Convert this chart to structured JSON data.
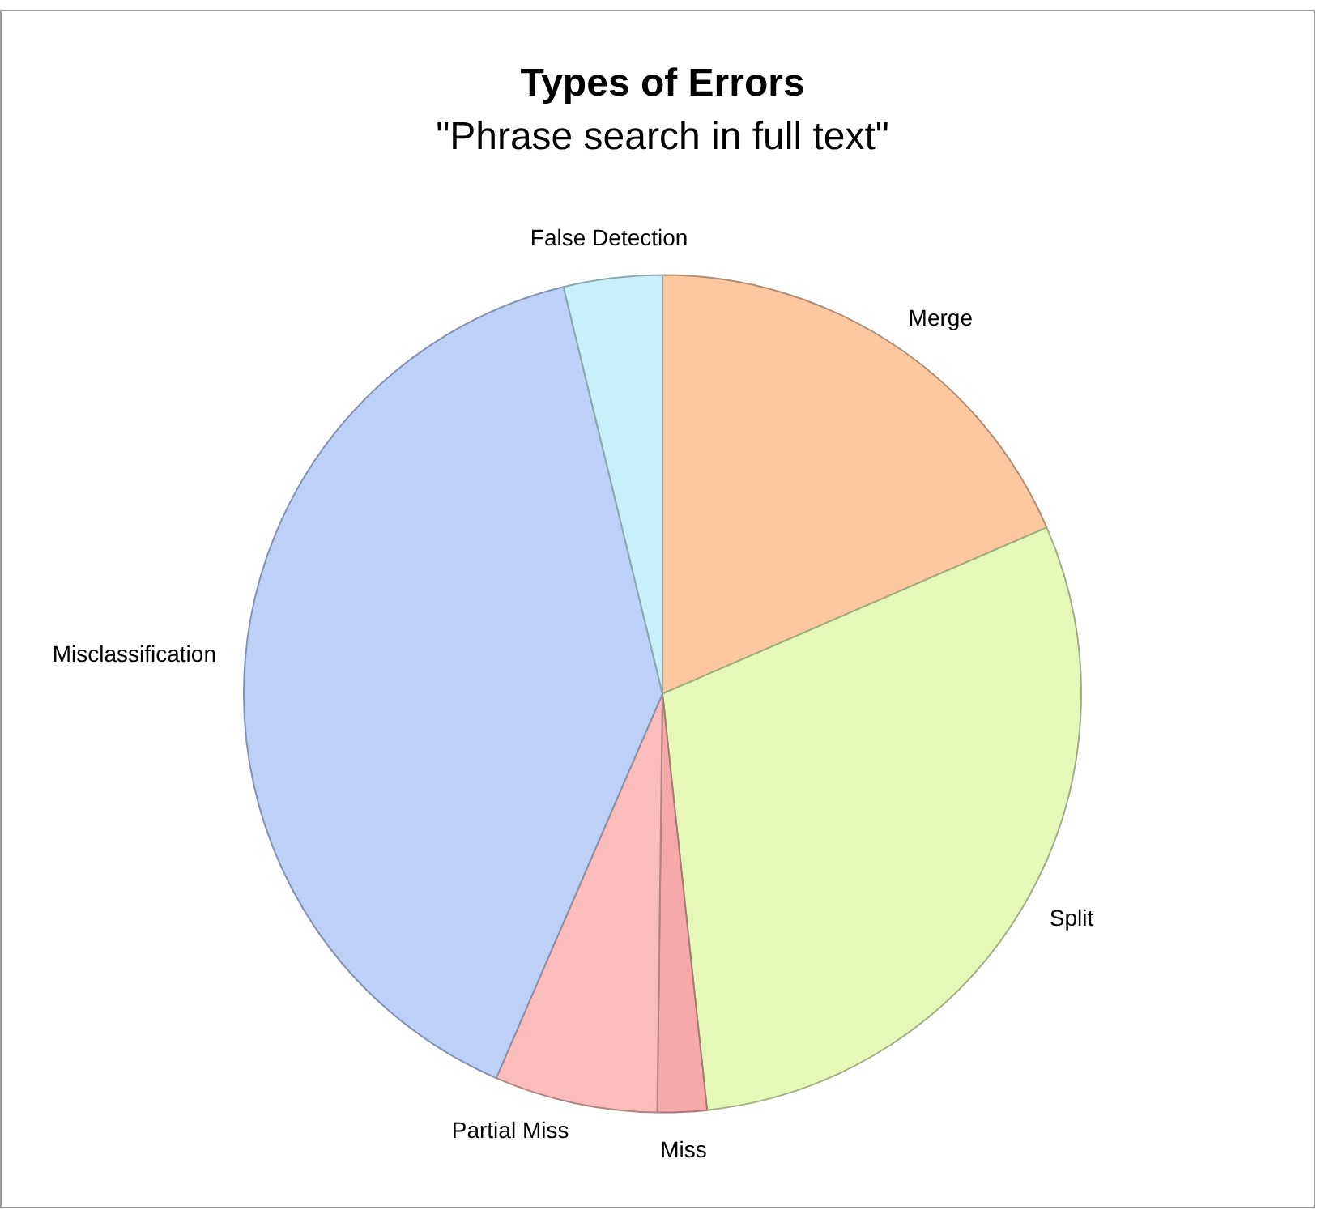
{
  "chart_data": {
    "type": "pie",
    "title": "Types of Errors",
    "subtitle": "\"Phrase search in full text\"",
    "categories": [
      "Merge",
      "Split",
      "Miss",
      "Partial Miss",
      "Misclassification",
      "False Detection"
    ],
    "values": [
      18.5,
      29.8,
      1.9,
      6.3,
      39.7,
      3.8
    ],
    "colors": [
      "#fdc8a0",
      "#e6f8b8",
      "#f7a9a9",
      "#fbbcbc",
      "#bdd1f8",
      "#c9f0fa"
    ],
    "legend": false
  }
}
